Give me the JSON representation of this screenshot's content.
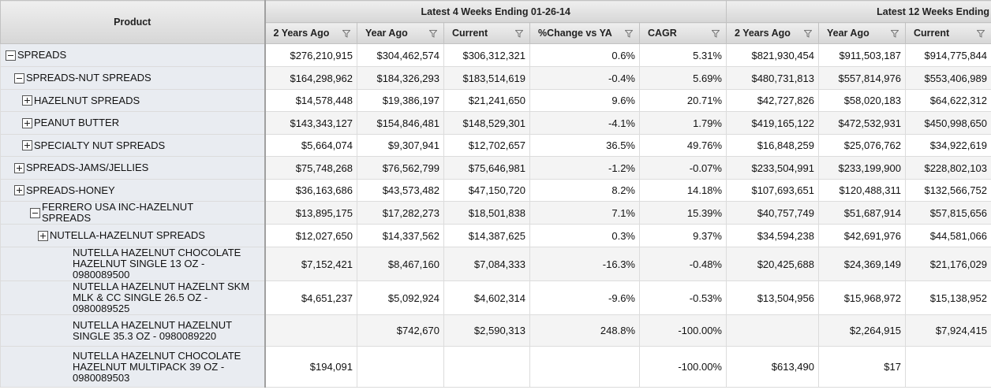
{
  "header": {
    "product": "Product",
    "groups": [
      "Latest 4 Weeks Ending 01-26-14",
      "Latest 12 Weeks Ending"
    ],
    "columns": [
      "2 Years Ago",
      "Year Ago",
      "Current",
      "%Change vs YA",
      "CAGR",
      "2 Years Ago",
      "Year Ago",
      "Current"
    ]
  },
  "rows": [
    {
      "label": "SPREADS",
      "cells": [
        "$276,210,915",
        "$304,462,574",
        "$306,312,321",
        "0.6%",
        "5.31%",
        "$821,930,454",
        "$911,503,187",
        "$914,775,844"
      ]
    },
    {
      "label": "SPREADS-NUT SPREADS",
      "cells": [
        "$164,298,962",
        "$184,326,293",
        "$183,514,619",
        "-0.4%",
        "5.69%",
        "$480,731,813",
        "$557,814,976",
        "$553,406,989"
      ]
    },
    {
      "label": "HAZELNUT SPREADS",
      "cells": [
        "$14,578,448",
        "$19,386,197",
        "$21,241,650",
        "9.6%",
        "20.71%",
        "$42,727,826",
        "$58,020,183",
        "$64,622,312"
      ]
    },
    {
      "label": "PEANUT BUTTER",
      "cells": [
        "$143,343,127",
        "$154,846,481",
        "$148,529,301",
        "-4.1%",
        "1.79%",
        "$419,165,122",
        "$472,532,931",
        "$450,998,650"
      ]
    },
    {
      "label": "SPECIALTY NUT SPREADS",
      "cells": [
        "$5,664,074",
        "$9,307,941",
        "$12,702,657",
        "36.5%",
        "49.76%",
        "$16,848,259",
        "$25,076,762",
        "$34,922,619"
      ]
    },
    {
      "label": "SPREADS-JAMS/JELLIES",
      "cells": [
        "$75,748,268",
        "$76,562,799",
        "$75,646,981",
        "-1.2%",
        "-0.07%",
        "$233,504,991",
        "$233,199,900",
        "$228,802,103"
      ]
    },
    {
      "label": "SPREADS-HONEY",
      "cells": [
        "$36,163,686",
        "$43,573,482",
        "$47,150,720",
        "8.2%",
        "14.18%",
        "$107,693,651",
        "$120,488,311",
        "$132,566,752"
      ]
    },
    {
      "label": "FERRERO USA INC-HAZELNUT SPREADS",
      "cells": [
        "$13,895,175",
        "$17,282,273",
        "$18,501,838",
        "7.1%",
        "15.39%",
        "$40,757,749",
        "$51,687,914",
        "$57,815,656"
      ]
    },
    {
      "label": "NUTELLA-HAZELNUT SPREADS",
      "cells": [
        "$12,027,650",
        "$14,337,562",
        "$14,387,625",
        "0.3%",
        "9.37%",
        "$34,594,238",
        "$42,691,976",
        "$44,581,066"
      ]
    },
    {
      "label": "NUTELLA HAZELNUT CHOCOLATE HAZELNUT SINGLE 13 OZ - 0980089500",
      "cells": [
        "$7,152,421",
        "$8,467,160",
        "$7,084,333",
        "-16.3%",
        "-0.48%",
        "$20,425,688",
        "$24,369,149",
        "$21,176,029"
      ]
    },
    {
      "label": "NUTELLA HAZELNUT HAZELNT SKM MLK & CC SINGLE 26.5 OZ - 0980089525",
      "cells": [
        "$4,651,237",
        "$5,092,924",
        "$4,602,314",
        "-9.6%",
        "-0.53%",
        "$13,504,956",
        "$15,968,972",
        "$15,138,952"
      ]
    },
    {
      "label": "NUTELLA HAZELNUT HAZELNUT SINGLE 35.3 OZ - 0980089220",
      "cells": [
        null,
        "$742,670",
        "$2,590,313",
        "248.8%",
        "-100.00%",
        null,
        "$2,264,915",
        "$7,924,415"
      ]
    },
    {
      "label": "NUTELLA HAZELNUT CHOCOLATE HAZELNUT MULTIPACK 39 OZ - 0980089503",
      "cells": [
        "$194,091",
        null,
        null,
        null,
        "-100.00%",
        "$613,490",
        "$17",
        null
      ]
    }
  ]
}
